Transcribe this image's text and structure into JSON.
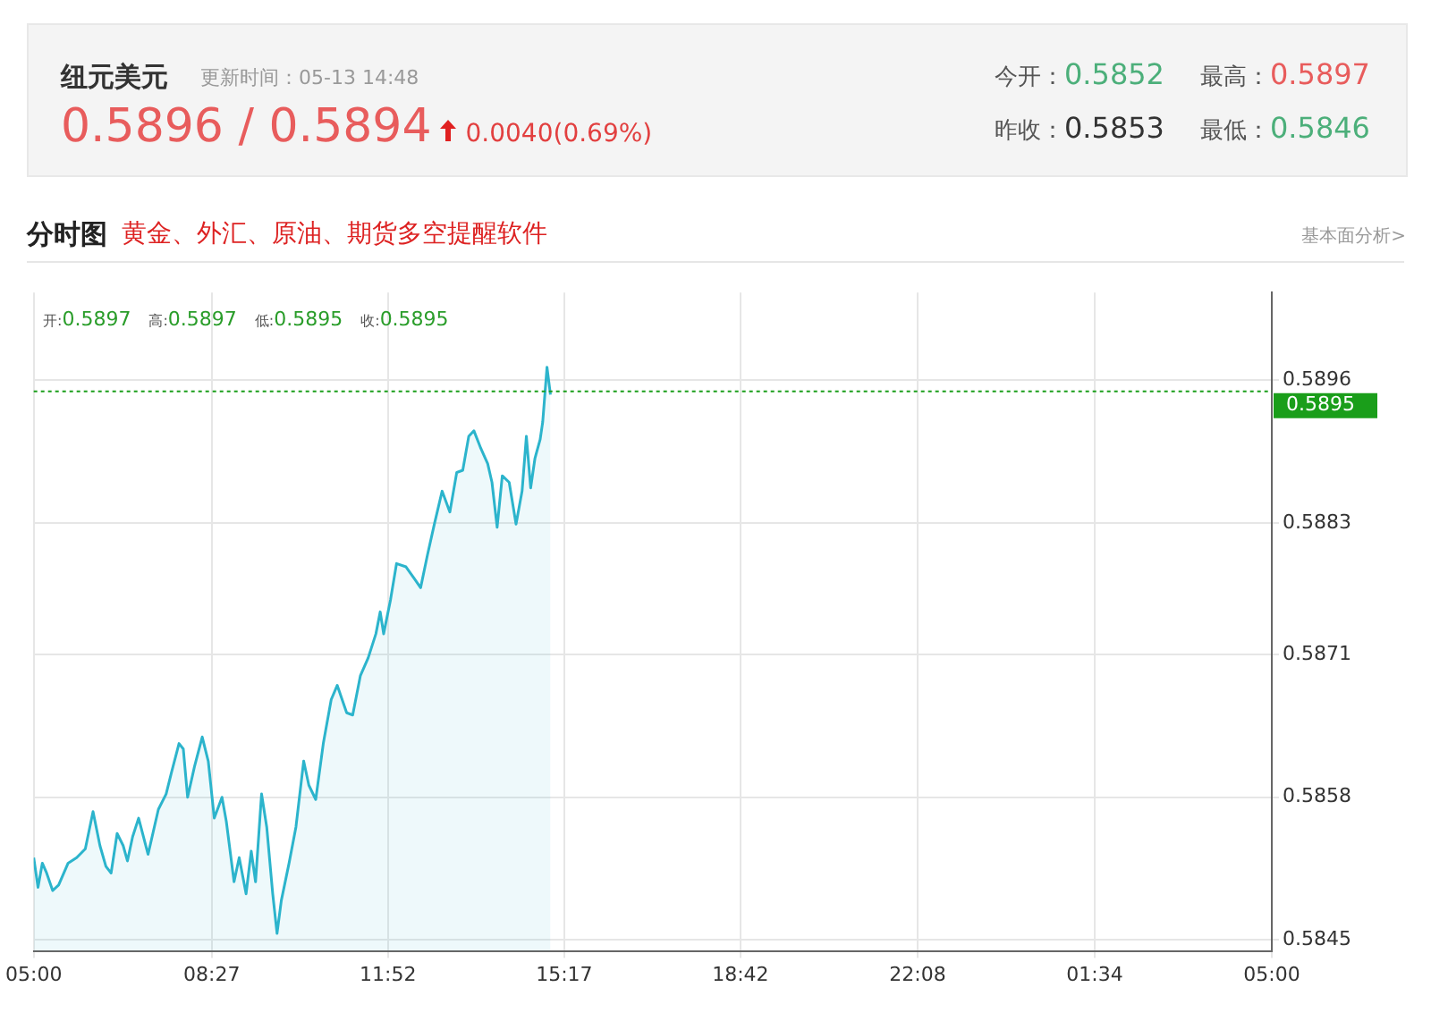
{
  "chart_data": {
    "type": "area",
    "title": "纽元美元",
    "annotations": [
      "更新时间：05-13 14:48",
      "0.5896 / 0.5894",
      "0.0040(0.69%)",
      "今开：0.5852",
      "最高：0.5897",
      "昨收：0.5853",
      "最低：0.5846",
      "分时图",
      "黄金、外汇、原油、期货多空提醒软件",
      "基本面分析>",
      "开:0.5897",
      "高:0.5897",
      "低:0.5895",
      "收:0.5895"
    ],
    "x": [
      "--05-13T05:00",
      "--05-13T05:05",
      "--05-13T05:10",
      "--05-13T05:15",
      "--05-13T05:22",
      "--05-13T05:29",
      "--05-13T05:40",
      "--05-13T05:50",
      "--05-13T06:00",
      "--05-13T06:09",
      "--05-13T06:17",
      "--05-13T06:24",
      "--05-13T06:30",
      "--05-13T06:37",
      "--05-13T06:44",
      "--05-13T06:49",
      "--05-13T06:55",
      "--05-13T07:02",
      "--05-13T07:13",
      "--05-13T07:25",
      "--05-13T07:34",
      "--05-13T07:40",
      "--05-13T07:49",
      "--05-13T07:54",
      "--05-13T07:59",
      "--05-13T08:07",
      "--05-13T08:16",
      "--05-13T08:23",
      "--05-13T08:30",
      "--05-13T08:39",
      "--05-13T08:44",
      "--05-13T08:53",
      "--05-13T08:59",
      "--05-13T09:07",
      "--05-13T09:13",
      "--05-13T09:18",
      "--05-13T09:25",
      "--05-13T09:31",
      "--05-13T09:38",
      "--05-13T09:43",
      "--05-13T09:48",
      "--05-13T09:57",
      "--05-13T10:05",
      "--05-13T10:14",
      "--05-13T10:20",
      "--05-13T10:28",
      "--05-13T10:37",
      "--05-13T10:46",
      "--05-13T10:53",
      "--05-13T11:04",
      "--05-13T11:11",
      "--05-13T11:20",
      "--05-13T11:29",
      "--05-13T11:38",
      "--05-13T11:43",
      "--05-13T11:47",
      "--05-13T11:55",
      "--05-13T12:02",
      "--05-13T12:13",
      "--05-13T12:23",
      "--05-13T12:30",
      "--05-13T12:38",
      "--05-13T12:46",
      "--05-13T12:55",
      "--05-13T13:04",
      "--05-13T13:12",
      "--05-13T13:19",
      "--05-13T13:26",
      "--05-13T13:32",
      "--05-13T13:40",
      "--05-13T13:48",
      "--05-13T13:53",
      "--05-13T13:59",
      "--05-13T14:05",
      "--05-13T14:13",
      "--05-13T14:21",
      "--05-13T14:28",
      "--05-13T14:33",
      "--05-13T14:38",
      "--05-13T14:43",
      "--05-13T14:49",
      "--05-13T14:52",
      "--05-13T14:57",
      "--05-13T15:01"
    ],
    "series": [
      {
        "color": "#2cb4cc",
        "values": [
          0.58525,
          0.58498,
          0.5852,
          0.58511,
          0.58495,
          0.585,
          0.5852,
          0.58525,
          0.58533,
          0.58567,
          0.58536,
          0.58517,
          0.58511,
          0.58547,
          0.58536,
          0.58522,
          0.58544,
          0.58561,
          0.58528,
          0.58569,
          0.58583,
          0.58602,
          0.58629,
          0.58624,
          0.5858,
          0.58608,
          0.58635,
          0.58613,
          0.58561,
          0.5858,
          0.58558,
          0.58503,
          0.58525,
          0.58492,
          0.58531,
          0.58503,
          0.58583,
          0.58553,
          0.58492,
          0.58456,
          0.58486,
          0.5852,
          0.58553,
          0.58613,
          0.58591,
          0.58578,
          0.5863,
          0.58669,
          0.58682,
          0.58657,
          0.58655,
          0.58691,
          0.58707,
          0.58729,
          0.58749,
          0.58729,
          0.5876,
          0.58793,
          0.5879,
          0.58779,
          0.58771,
          0.58801,
          0.58829,
          0.58859,
          0.5884,
          0.58876,
          0.58878,
          0.58909,
          0.58914,
          0.58898,
          0.58884,
          0.58867,
          0.58826,
          0.58873,
          0.58867,
          0.58829,
          0.58859,
          0.58909,
          0.58862,
          0.58889,
          0.58906,
          0.58922,
          0.58972,
          0.58947
        ]
      }
    ],
    "xlim": [
      "--05-13T05:00",
      "--05-14T05:00"
    ],
    "xticks": [
      {
        "value": "--05-13T05:00",
        "label": "05:00"
      },
      {
        "value": "--05-13T08:27",
        "label": "08:27"
      },
      {
        "value": "--05-13T11:52",
        "label": "11:52"
      },
      {
        "value": "--05-13T15:17",
        "label": "15:17"
      },
      {
        "value": "--05-13T18:42",
        "label": "18:42"
      },
      {
        "value": "--05-13T22:08",
        "label": "22:08"
      },
      {
        "value": "--05-14T01:34",
        "label": "01:34"
      },
      {
        "value": "--05-14T05:00",
        "label": "05:00"
      }
    ],
    "ylim": [
      0.5844,
      0.5904
    ],
    "yticks": [
      0.5845,
      0.5858,
      0.5871,
      0.5883,
      0.5896
    ],
    "ref_lines": [
      {
        "axis": "y",
        "value": 0.5895,
        "label": "0.5895",
        "color": "#1a9e1a",
        "line_style": "dotted"
      }
    ],
    "grid": true,
    "legend": false
  }
}
